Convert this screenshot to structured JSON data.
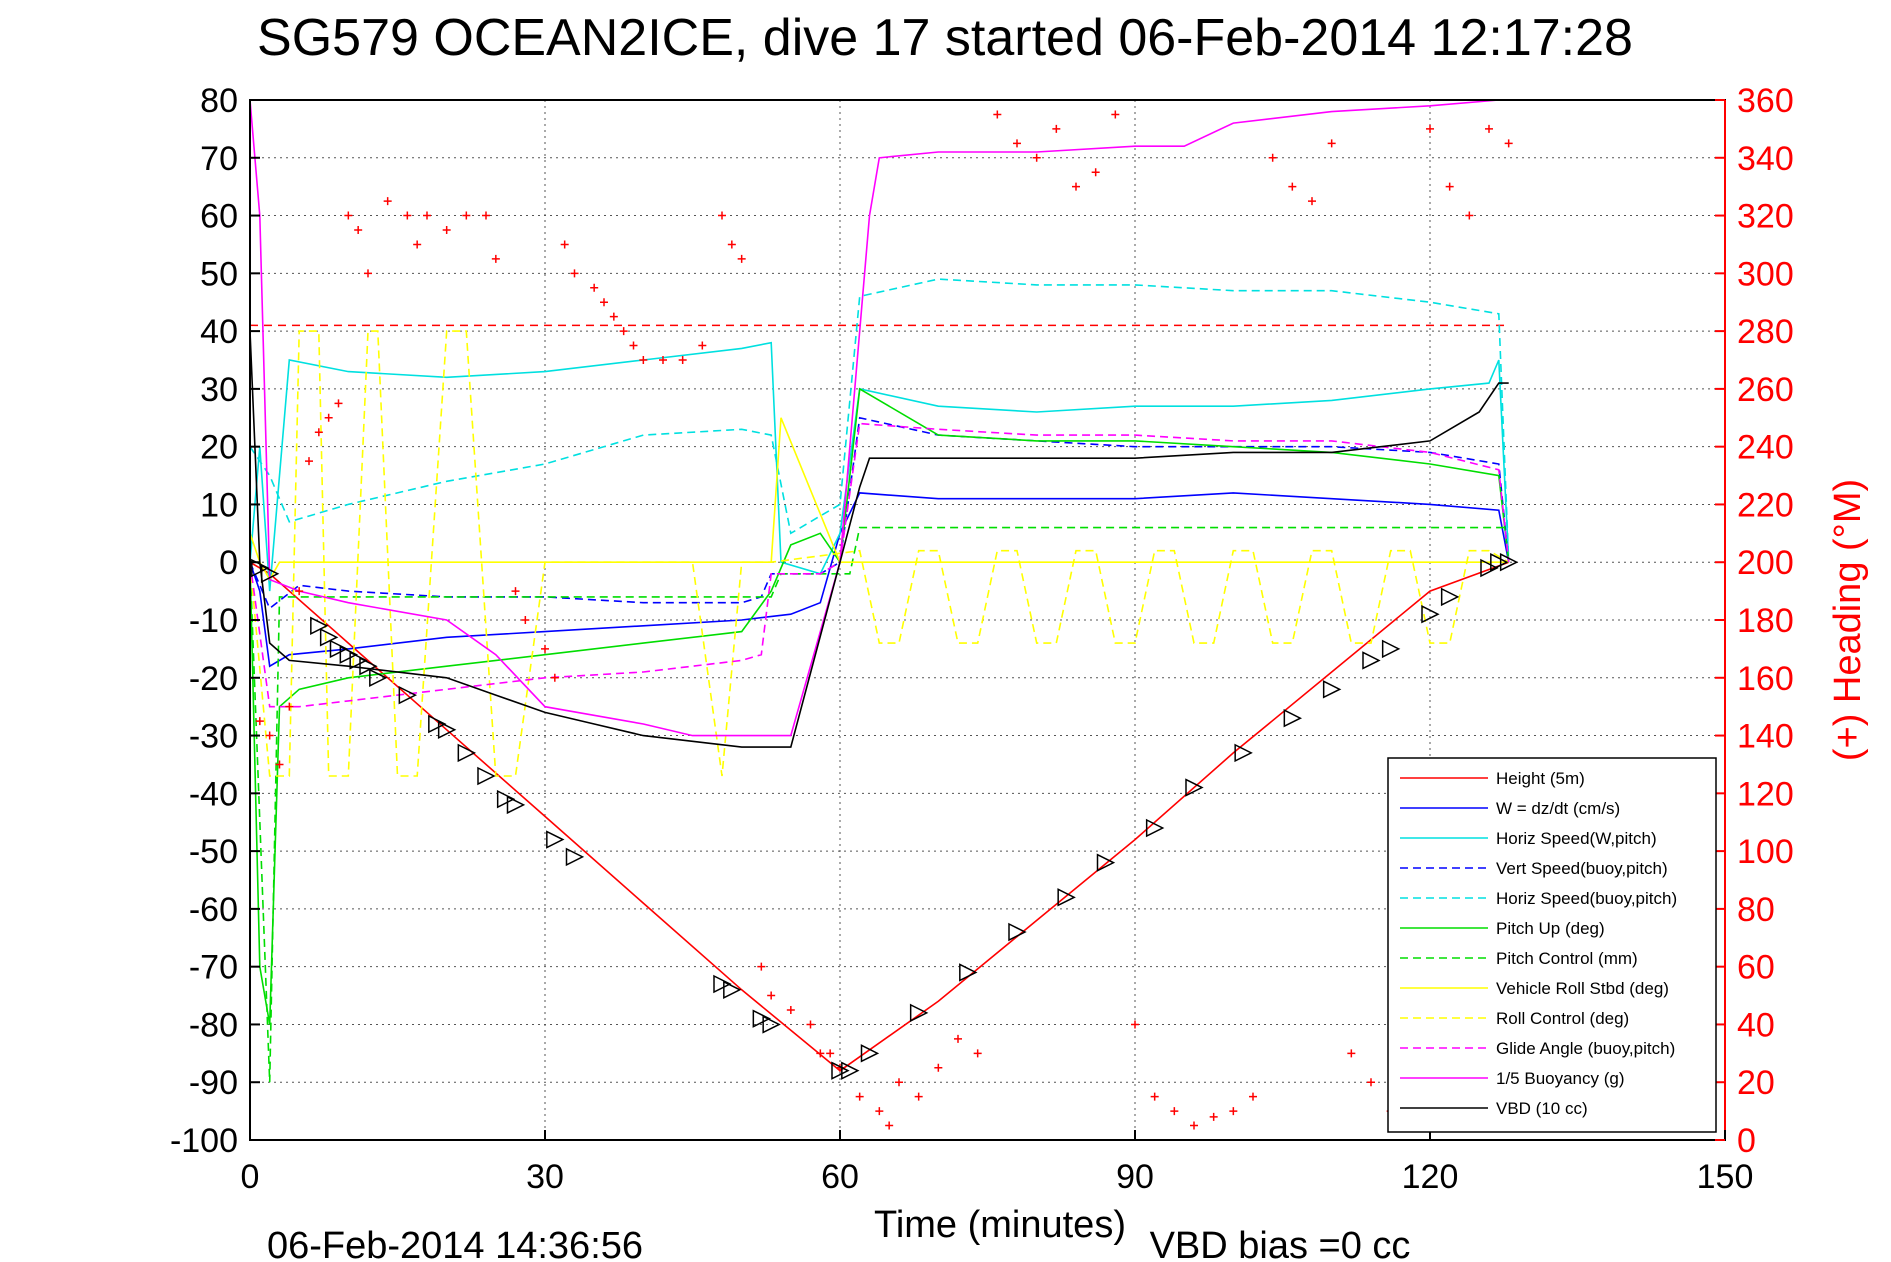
{
  "chart_data": {
    "type": "line",
    "title": "SG579 OCEAN2ICE, dive 17 started 06-Feb-2014 12:17:28",
    "xlabel": "Time (minutes)",
    "ylabel": "",
    "ylabel_right": "(+) Heading (°M)",
    "footer_date": "06-Feb-2014 14:36:56",
    "footer_note": "VBD bias =0 cc",
    "xlim": [
      0,
      150
    ],
    "ylim": [
      -100,
      80
    ],
    "ylim_right": [
      0,
      360
    ],
    "x_ticks": [
      "0",
      "30",
      "60",
      "90",
      "120",
      "150"
    ],
    "y_ticks": [
      "80",
      "70",
      "60",
      "50",
      "40",
      "30",
      "20",
      "10",
      "0",
      "-10",
      "-20",
      "-30",
      "-40",
      "-50",
      "-60",
      "-70",
      "-80",
      "-90",
      "-100"
    ],
    "y_ticks_right": [
      "360",
      "340",
      "320",
      "300",
      "280",
      "260",
      "240",
      "220",
      "200",
      "180",
      "160",
      "140",
      "120",
      "100",
      "80",
      "60",
      "40",
      "20",
      "0"
    ],
    "grid": true,
    "legend_position": "bottom-right",
    "series": [
      {
        "name": "Height (5m)",
        "color": "#ff0000",
        "style": "solid",
        "x": [
          0,
          2,
          10,
          20,
          30,
          40,
          50,
          60,
          70,
          80,
          90,
          100,
          110,
          120,
          128
        ],
        "y": [
          0,
          -2,
          -14,
          -29,
          -44,
          -59,
          -74,
          -88,
          -76,
          -62,
          -48,
          -33,
          -19,
          -5,
          0
        ]
      },
      {
        "name": "W = dz/dt (cm/s)",
        "color": "#0000ff",
        "style": "solid",
        "x": [
          0,
          1,
          2,
          4,
          10,
          20,
          30,
          40,
          50,
          55,
          58,
          60,
          62,
          70,
          80,
          90,
          100,
          110,
          120,
          127,
          128
        ],
        "y": [
          0,
          -5,
          -18,
          -16,
          -15,
          -13,
          -12,
          -11,
          -10,
          -9,
          -7,
          5,
          12,
          11,
          11,
          11,
          12,
          11,
          10,
          9,
          0
        ]
      },
      {
        "name": "Horiz Speed(W,pitch)",
        "color": "#00e0e0",
        "style": "solid",
        "x": [
          0,
          1,
          2,
          4,
          10,
          20,
          30,
          40,
          50,
          53,
          54,
          58,
          60,
          62,
          70,
          80,
          90,
          100,
          110,
          120,
          126,
          127,
          128
        ],
        "y": [
          0,
          20,
          -5,
          35,
          33,
          32,
          33,
          35,
          37,
          38,
          0,
          -2,
          5,
          30,
          27,
          26,
          27,
          27,
          28,
          30,
          31,
          35,
          0
        ]
      },
      {
        "name": "Vert Speed(buoy,pitch)",
        "color": "#0000ff",
        "style": "dashed",
        "x": [
          0,
          2,
          5,
          10,
          20,
          30,
          40,
          50,
          52,
          53,
          58,
          60,
          62,
          70,
          80,
          90,
          100,
          110,
          120,
          127,
          128
        ],
        "y": [
          0,
          -8,
          -4,
          -5,
          -6,
          -6,
          -7,
          -7,
          -6,
          -2,
          -2,
          0,
          25,
          22,
          21,
          20,
          20,
          20,
          19,
          17,
          0
        ]
      },
      {
        "name": "Horiz Speed(buoy,pitch)",
        "color": "#00e0e0",
        "style": "dashed",
        "x": [
          0,
          2,
          4,
          10,
          20,
          30,
          40,
          50,
          53,
          55,
          60,
          62,
          70,
          80,
          90,
          100,
          110,
          120,
          127,
          128
        ],
        "y": [
          20,
          15,
          7,
          10,
          14,
          17,
          22,
          23,
          22,
          5,
          10,
          46,
          49,
          48,
          48,
          47,
          47,
          45,
          43,
          0
        ]
      },
      {
        "name": "Pitch Up (deg)",
        "color": "#00dd00",
        "style": "solid",
        "x": [
          0,
          1,
          2,
          3,
          5,
          10,
          20,
          30,
          40,
          50,
          53,
          55,
          58,
          60,
          62,
          70,
          80,
          90,
          100,
          110,
          120,
          127,
          128
        ],
        "y": [
          0,
          -70,
          -80,
          -25,
          -22,
          -20,
          -18,
          -16,
          -14,
          -12,
          -5,
          3,
          5,
          0,
          30,
          22,
          21,
          21,
          20,
          19,
          17,
          15,
          0
        ]
      },
      {
        "name": "Pitch Control (mm)",
        "color": "#00dd00",
        "style": "dashed",
        "x": [
          0,
          2,
          3,
          30,
          53,
          54,
          61,
          62,
          128
        ],
        "y": [
          0,
          -90,
          -6,
          -6,
          -6,
          -2,
          -2,
          6,
          6
        ]
      },
      {
        "name": "Vehicle Roll Stbd (deg)",
        "color": "#ffff00",
        "style": "solid",
        "x": [
          0,
          1,
          2,
          3,
          30,
          53,
          54,
          60,
          62,
          128
        ],
        "y": [
          5,
          0,
          -3,
          0,
          0,
          0,
          25,
          0,
          0,
          0
        ]
      },
      {
        "name": "Roll Control (deg)",
        "color": "#ffff00",
        "style": "dashed",
        "x": [
          0,
          2,
          4,
          5,
          7,
          8,
          10,
          12,
          13,
          15,
          17,
          20,
          22,
          25,
          27,
          30,
          32,
          35,
          40,
          45,
          48,
          50,
          53,
          62,
          64,
          66,
          68,
          70,
          72,
          74,
          76,
          78,
          80,
          82,
          84,
          86,
          88,
          90,
          92,
          94,
          96,
          98,
          100,
          102,
          104,
          106,
          108,
          110,
          112,
          114,
          116,
          118,
          120,
          122,
          124,
          126,
          128
        ],
        "y": [
          0,
          -37,
          -37,
          40,
          40,
          -37,
          -37,
          40,
          40,
          -37,
          -37,
          40,
          40,
          -37,
          -37,
          0,
          0,
          0,
          0,
          0,
          -37,
          0,
          0,
          2,
          -14,
          -14,
          2,
          2,
          -14,
          -14,
          2,
          2,
          -14,
          -14,
          2,
          2,
          -14,
          -14,
          2,
          2,
          -14,
          -14,
          2,
          2,
          -14,
          -14,
          2,
          2,
          -14,
          -14,
          2,
          2,
          -14,
          -14,
          2,
          2,
          0
        ]
      },
      {
        "name": "Glide Angle (buoy,pitch)",
        "color": "#ff00ff",
        "style": "dashed",
        "x": [
          0,
          2,
          5,
          10,
          20,
          30,
          40,
          50,
          52,
          53,
          58,
          60,
          62,
          70,
          80,
          90,
          100,
          110,
          120,
          127,
          128
        ],
        "y": [
          0,
          -25,
          -25,
          -24,
          -22,
          -20,
          -19,
          -17,
          -16,
          -2,
          -2,
          0,
          24,
          23,
          22,
          22,
          21,
          21,
          19,
          16,
          0
        ]
      },
      {
        "name": "1/5 Buoyancy (g)",
        "color": "#ff00ff",
        "style": "solid",
        "x": [
          0,
          1,
          2,
          5,
          10,
          20,
          25,
          30,
          40,
          45,
          50,
          55,
          60,
          62,
          63,
          64,
          70,
          80,
          90,
          95,
          100,
          110,
          120,
          127,
          128
        ],
        "y": [
          80,
          60,
          -3,
          -5,
          -7,
          -10,
          -16,
          -25,
          -28,
          -30,
          -30,
          -30,
          0,
          40,
          60,
          70,
          71,
          71,
          72,
          72,
          76,
          78,
          79,
          80,
          80
        ]
      },
      {
        "name": "VBD (10 cc)",
        "color": "#000000",
        "style": "solid",
        "x": [
          0,
          1,
          2,
          4,
          10,
          20,
          25,
          30,
          35,
          40,
          45,
          50,
          55,
          60,
          62,
          63,
          70,
          80,
          90,
          100,
          110,
          120,
          125,
          127,
          128
        ],
        "y": [
          40,
          0,
          -14,
          -17,
          -18,
          -20,
          -23,
          -26,
          -28,
          -30,
          -31,
          -32,
          -32,
          0,
          13,
          18,
          18,
          18,
          18,
          19,
          19,
          21,
          26,
          31,
          31
        ]
      }
    ],
    "threshold_lines": [
      {
        "color": "#ff0000",
        "style": "dashed",
        "y": 41,
        "x": [
          0,
          128
        ]
      }
    ],
    "heading_series": {
      "color": "#ff0000",
      "marker": "+",
      "axis": "right",
      "x": [
        1,
        2,
        3,
        4,
        5,
        6,
        7,
        8,
        9,
        10,
        11,
        12,
        14,
        16,
        17,
        18,
        20,
        22,
        24,
        25,
        27,
        28,
        30,
        31,
        32,
        33,
        35,
        36,
        37,
        38,
        39,
        40,
        42,
        44,
        46,
        48,
        49,
        50,
        52,
        53,
        55,
        57,
        58,
        59,
        60,
        62,
        64,
        65,
        66,
        68,
        70,
        72,
        74,
        76,
        78,
        80,
        82,
        84,
        86,
        88,
        90,
        92,
        94,
        96,
        98,
        100,
        102,
        104,
        106,
        108,
        110,
        112,
        114,
        116,
        118,
        120,
        122,
        124,
        126,
        128
      ],
      "y": [
        145,
        140,
        130,
        150,
        190,
        235,
        245,
        250,
        255,
        320,
        315,
        300,
        325,
        320,
        310,
        320,
        315,
        320,
        320,
        305,
        190,
        180,
        170,
        160,
        310,
        300,
        295,
        290,
        285,
        280,
        275,
        270,
        270,
        270,
        275,
        320,
        310,
        305,
        60,
        50,
        45,
        40,
        30,
        30,
        25,
        15,
        10,
        5,
        20,
        15,
        25,
        35,
        30,
        355,
        345,
        340,
        350,
        330,
        335,
        355,
        40,
        15,
        10,
        5,
        8,
        10,
        15,
        340,
        330,
        325,
        345,
        30,
        20,
        10,
        5,
        350,
        330,
        320,
        350,
        345
      ]
    },
    "marker_series": {
      "color": "#000000",
      "marker": "triangle",
      "x": [
        1,
        2,
        7,
        8,
        9,
        10,
        11,
        12,
        13,
        16,
        19,
        20,
        22,
        24,
        26,
        27,
        31,
        33,
        48,
        49,
        52,
        53,
        60,
        61,
        63,
        68,
        73,
        78,
        83,
        87,
        92,
        96,
        101,
        106,
        110,
        114,
        116,
        120,
        122,
        126,
        127,
        128
      ],
      "y": [
        -1,
        -2,
        -11,
        -13,
        -15,
        -16,
        -17,
        -18,
        -20,
        -23,
        -28,
        -29,
        -33,
        -37,
        -41,
        -42,
        -48,
        -51,
        -73,
        -74,
        -79,
        -80,
        -88,
        -88,
        -85,
        -78,
        -71,
        -64,
        -58,
        -52,
        -46,
        -39,
        -33,
        -27,
        -22,
        -17,
        -15,
        -9,
        -6,
        -1,
        0,
        0
      ]
    }
  }
}
